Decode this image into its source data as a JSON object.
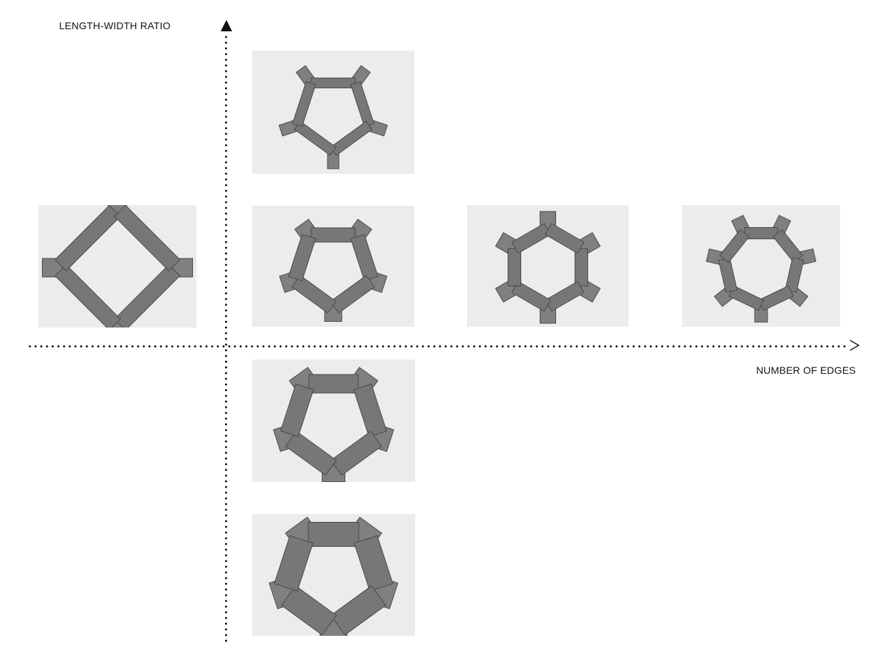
{
  "axes": {
    "y_label": "LENGTH-WIDTH RATIO",
    "x_label": "NUMBER OF EDGES"
  },
  "colors": {
    "panel": "#7a7a7a",
    "panel_edge": "#4a4a4a",
    "photo_bg": "#ececec",
    "axis": "#111111"
  },
  "models": [
    {
      "id": "square-4",
      "edges": 4
    },
    {
      "id": "pentagon-long",
      "edges": 5
    },
    {
      "id": "pentagon-mid",
      "edges": 5
    },
    {
      "id": "hexagon",
      "edges": 6
    },
    {
      "id": "heptagon",
      "edges": 7
    },
    {
      "id": "pentagon-wide",
      "edges": 5
    },
    {
      "id": "pentagon-square",
      "edges": 5
    }
  ]
}
